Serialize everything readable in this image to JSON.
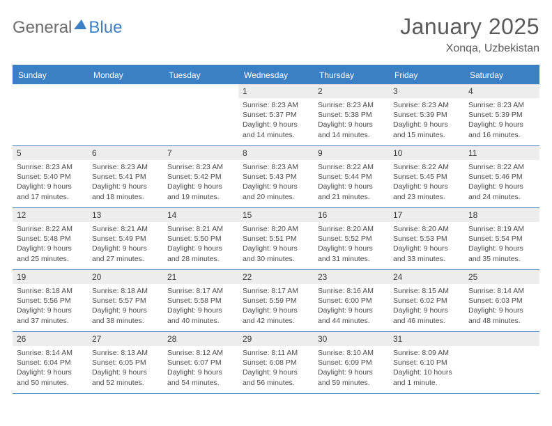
{
  "logo": {
    "text1": "General",
    "text2": "Blue"
  },
  "title": "January 2025",
  "location": "Xonqa, Uzbekistan",
  "colors": {
    "accent": "#3b7fc4",
    "header_bg": "#3b7fc4",
    "header_text": "#ffffff",
    "daynum_bg": "#ededed",
    "text": "#4a4a4a",
    "border": "#3b7fc4",
    "background": "#ffffff"
  },
  "typography": {
    "title_fontsize": 32,
    "location_fontsize": 16,
    "header_fontsize": 12,
    "daynum_fontsize": 12,
    "body_fontsize": 10.5
  },
  "dayHeaders": [
    "Sunday",
    "Monday",
    "Tuesday",
    "Wednesday",
    "Thursday",
    "Friday",
    "Saturday"
  ],
  "weeks": [
    [
      null,
      null,
      null,
      {
        "n": "1",
        "sunrise": "8:23 AM",
        "sunset": "5:37 PM",
        "daylight": "9 hours and 14 minutes."
      },
      {
        "n": "2",
        "sunrise": "8:23 AM",
        "sunset": "5:38 PM",
        "daylight": "9 hours and 14 minutes."
      },
      {
        "n": "3",
        "sunrise": "8:23 AM",
        "sunset": "5:39 PM",
        "daylight": "9 hours and 15 minutes."
      },
      {
        "n": "4",
        "sunrise": "8:23 AM",
        "sunset": "5:39 PM",
        "daylight": "9 hours and 16 minutes."
      }
    ],
    [
      {
        "n": "5",
        "sunrise": "8:23 AM",
        "sunset": "5:40 PM",
        "daylight": "9 hours and 17 minutes."
      },
      {
        "n": "6",
        "sunrise": "8:23 AM",
        "sunset": "5:41 PM",
        "daylight": "9 hours and 18 minutes."
      },
      {
        "n": "7",
        "sunrise": "8:23 AM",
        "sunset": "5:42 PM",
        "daylight": "9 hours and 19 minutes."
      },
      {
        "n": "8",
        "sunrise": "8:23 AM",
        "sunset": "5:43 PM",
        "daylight": "9 hours and 20 minutes."
      },
      {
        "n": "9",
        "sunrise": "8:22 AM",
        "sunset": "5:44 PM",
        "daylight": "9 hours and 21 minutes."
      },
      {
        "n": "10",
        "sunrise": "8:22 AM",
        "sunset": "5:45 PM",
        "daylight": "9 hours and 23 minutes."
      },
      {
        "n": "11",
        "sunrise": "8:22 AM",
        "sunset": "5:46 PM",
        "daylight": "9 hours and 24 minutes."
      }
    ],
    [
      {
        "n": "12",
        "sunrise": "8:22 AM",
        "sunset": "5:48 PM",
        "daylight": "9 hours and 25 minutes."
      },
      {
        "n": "13",
        "sunrise": "8:21 AM",
        "sunset": "5:49 PM",
        "daylight": "9 hours and 27 minutes."
      },
      {
        "n": "14",
        "sunrise": "8:21 AM",
        "sunset": "5:50 PM",
        "daylight": "9 hours and 28 minutes."
      },
      {
        "n": "15",
        "sunrise": "8:20 AM",
        "sunset": "5:51 PM",
        "daylight": "9 hours and 30 minutes."
      },
      {
        "n": "16",
        "sunrise": "8:20 AM",
        "sunset": "5:52 PM",
        "daylight": "9 hours and 31 minutes."
      },
      {
        "n": "17",
        "sunrise": "8:20 AM",
        "sunset": "5:53 PM",
        "daylight": "9 hours and 33 minutes."
      },
      {
        "n": "18",
        "sunrise": "8:19 AM",
        "sunset": "5:54 PM",
        "daylight": "9 hours and 35 minutes."
      }
    ],
    [
      {
        "n": "19",
        "sunrise": "8:18 AM",
        "sunset": "5:56 PM",
        "daylight": "9 hours and 37 minutes."
      },
      {
        "n": "20",
        "sunrise": "8:18 AM",
        "sunset": "5:57 PM",
        "daylight": "9 hours and 38 minutes."
      },
      {
        "n": "21",
        "sunrise": "8:17 AM",
        "sunset": "5:58 PM",
        "daylight": "9 hours and 40 minutes."
      },
      {
        "n": "22",
        "sunrise": "8:17 AM",
        "sunset": "5:59 PM",
        "daylight": "9 hours and 42 minutes."
      },
      {
        "n": "23",
        "sunrise": "8:16 AM",
        "sunset": "6:00 PM",
        "daylight": "9 hours and 44 minutes."
      },
      {
        "n": "24",
        "sunrise": "8:15 AM",
        "sunset": "6:02 PM",
        "daylight": "9 hours and 46 minutes."
      },
      {
        "n": "25",
        "sunrise": "8:14 AM",
        "sunset": "6:03 PM",
        "daylight": "9 hours and 48 minutes."
      }
    ],
    [
      {
        "n": "26",
        "sunrise": "8:14 AM",
        "sunset": "6:04 PM",
        "daylight": "9 hours and 50 minutes."
      },
      {
        "n": "27",
        "sunrise": "8:13 AM",
        "sunset": "6:05 PM",
        "daylight": "9 hours and 52 minutes."
      },
      {
        "n": "28",
        "sunrise": "8:12 AM",
        "sunset": "6:07 PM",
        "daylight": "9 hours and 54 minutes."
      },
      {
        "n": "29",
        "sunrise": "8:11 AM",
        "sunset": "6:08 PM",
        "daylight": "9 hours and 56 minutes."
      },
      {
        "n": "30",
        "sunrise": "8:10 AM",
        "sunset": "6:09 PM",
        "daylight": "9 hours and 59 minutes."
      },
      {
        "n": "31",
        "sunrise": "8:09 AM",
        "sunset": "6:10 PM",
        "daylight": "10 hours and 1 minute."
      },
      null
    ]
  ],
  "labels": {
    "sunrise": "Sunrise:",
    "sunset": "Sunset:",
    "daylight": "Daylight:"
  }
}
